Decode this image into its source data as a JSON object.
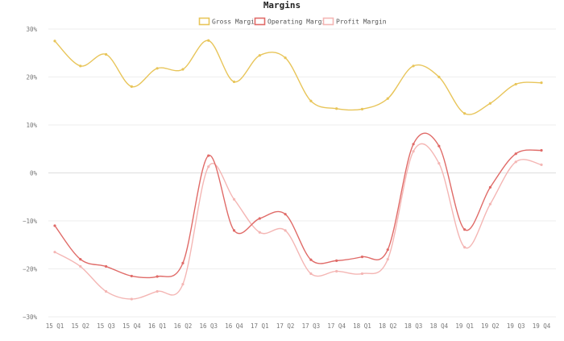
{
  "chart_data": {
    "type": "line",
    "title": "Margins",
    "categories": [
      "15 Q1",
      "15 Q2",
      "15 Q3",
      "15 Q4",
      "16 Q1",
      "16 Q2",
      "16 Q3",
      "16 Q4",
      "17 Q1",
      "17 Q2",
      "17 Q3",
      "17 Q4",
      "18 Q1",
      "18 Q2",
      "18 Q3",
      "18 Q4",
      "19 Q1",
      "19 Q2",
      "19 Q3",
      "19 Q4"
    ],
    "ylim": [
      -30,
      30
    ],
    "yticks": [
      -30,
      -20,
      -10,
      0,
      10,
      20,
      30
    ],
    "ytick_labels": [
      "−30%",
      "−20%",
      "−10%",
      "0%",
      "10%",
      "20%",
      "30%"
    ],
    "grid": true,
    "legend_position": "top-center",
    "series": [
      {
        "name": "Gross Margin",
        "color": "#e8c55a",
        "values": [
          27.5,
          22.3,
          24.7,
          18.0,
          21.8,
          21.6,
          27.6,
          19.0,
          24.5,
          24.0,
          15.0,
          13.4,
          13.3,
          15.5,
          22.3,
          20.0,
          12.4,
          14.5,
          18.5,
          18.8
        ]
      },
      {
        "name": "Operating Margin",
        "color": "#e06b68",
        "values": [
          -11.0,
          -18.0,
          -19.5,
          -21.5,
          -21.6,
          -18.8,
          3.6,
          -12.0,
          -9.5,
          -8.6,
          -18.1,
          -18.3,
          -17.5,
          -16.0,
          6.0,
          5.6,
          -11.8,
          -3.0,
          4.0,
          4.7
        ]
      },
      {
        "name": "Profit Margin",
        "color": "#f4b6b4",
        "values": [
          -16.5,
          -19.5,
          -24.7,
          -26.3,
          -24.7,
          -23.2,
          1.3,
          -5.5,
          -12.4,
          -12.0,
          -21.0,
          -20.5,
          -21.0,
          -18.0,
          4.5,
          2.0,
          -15.5,
          -6.5,
          2.3,
          1.7
        ]
      }
    ]
  }
}
